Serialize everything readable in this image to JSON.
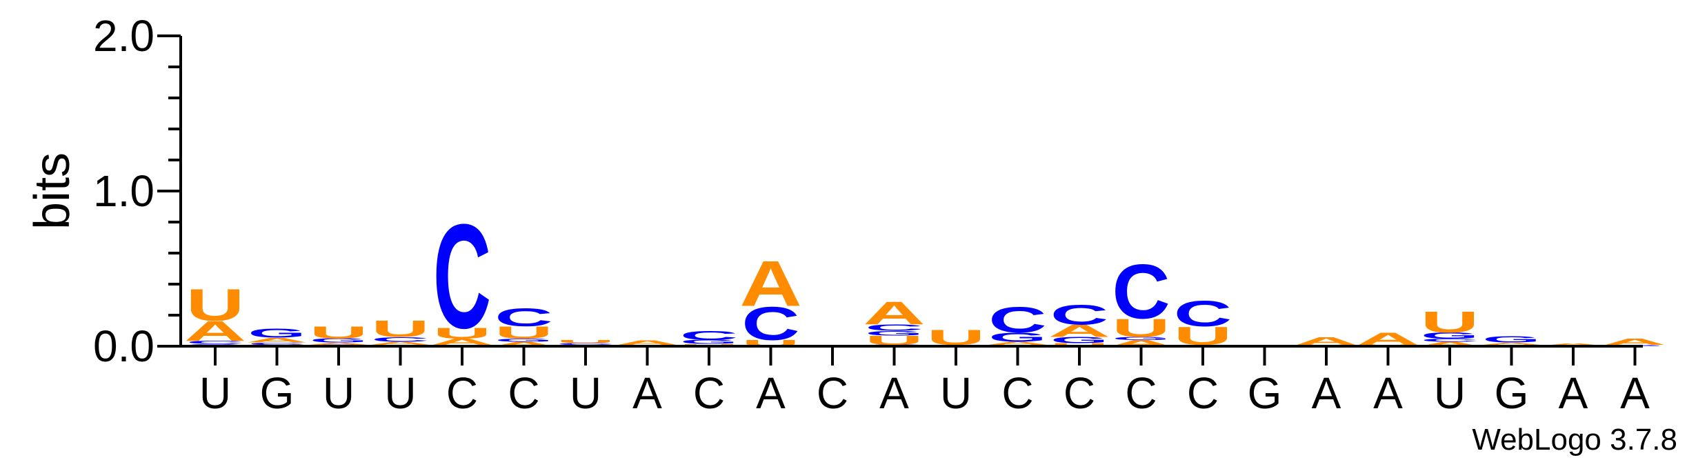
{
  "chart_data": {
    "type": "sequence-logo",
    "ylabel": "bits",
    "ylim": [
      0,
      2.0
    ],
    "yticks": [
      "0.0",
      "1.0",
      "2.0"
    ],
    "credit": "WebLogo 3.7.8",
    "colors": {
      "A": "#ff8c00",
      "U": "#ff8c00",
      "C": "#0000ff",
      "G": "#0000ff"
    },
    "positions": [
      {
        "label": "U",
        "stack": [
          [
            "G",
            0.015
          ],
          [
            "C",
            0.02
          ],
          [
            "A",
            0.13
          ],
          [
            "U",
            0.21
          ]
        ]
      },
      {
        "label": "G",
        "stack": [
          [
            "U",
            0.01
          ],
          [
            "C",
            0.015
          ],
          [
            "A",
            0.03
          ],
          [
            "G",
            0.06
          ]
        ]
      },
      {
        "label": "U",
        "stack": [
          [
            "C",
            0.01
          ],
          [
            "A",
            0.015
          ],
          [
            "G",
            0.025
          ],
          [
            "U",
            0.08
          ]
        ]
      },
      {
        "label": "U",
        "stack": [
          [
            "G",
            0.01
          ],
          [
            "A",
            0.02
          ],
          [
            "C",
            0.03
          ],
          [
            "U",
            0.11
          ]
        ]
      },
      {
        "label": "C",
        "stack": [
          [
            "G",
            0.01
          ],
          [
            "A",
            0.04
          ],
          [
            "U",
            0.07
          ],
          [
            "C",
            0.69
          ]
        ]
      },
      {
        "label": "C",
        "stack": [
          [
            "A",
            0.03
          ],
          [
            "G",
            0.02
          ],
          [
            "U",
            0.08
          ],
          [
            "C",
            0.12
          ]
        ]
      },
      {
        "label": "U",
        "stack": [
          [
            "A",
            0.01
          ],
          [
            "C",
            0.01
          ],
          [
            "U",
            0.02
          ]
        ]
      },
      {
        "label": "A",
        "stack": [
          [
            "U",
            0.01
          ],
          [
            "A",
            0.03
          ]
        ]
      },
      {
        "label": "C",
        "stack": [
          [
            "U",
            0.015
          ],
          [
            "G",
            0.025
          ],
          [
            "C",
            0.06
          ]
        ]
      },
      {
        "label": "A",
        "stack": [
          [
            "U",
            0.04
          ],
          [
            "C",
            0.22
          ],
          [
            "A",
            0.3
          ]
        ]
      },
      {
        "label": "C",
        "stack": []
      },
      {
        "label": "A",
        "stack": [
          [
            "C",
            0.01
          ],
          [
            "U",
            0.06
          ],
          [
            "G",
            0.03
          ],
          [
            "C",
            0.04
          ],
          [
            "A",
            0.15
          ]
        ]
      },
      {
        "label": "U",
        "stack": [
          [
            "A",
            0.01
          ],
          [
            "U",
            0.1
          ]
        ]
      },
      {
        "label": "C",
        "stack": [
          [
            "U",
            0.01
          ],
          [
            "A",
            0.02
          ],
          [
            "G",
            0.06
          ],
          [
            "C",
            0.17
          ]
        ]
      },
      {
        "label": "C",
        "stack": [
          [
            "U",
            0.02
          ],
          [
            "G",
            0.04
          ],
          [
            "A",
            0.08
          ],
          [
            "C",
            0.13
          ]
        ]
      },
      {
        "label": "C",
        "stack": [
          [
            "A",
            0.04
          ],
          [
            "G",
            0.02
          ],
          [
            "U",
            0.12
          ],
          [
            "C",
            0.36
          ]
        ]
      },
      {
        "label": "C",
        "stack": [
          [
            "A",
            0.01
          ],
          [
            "U",
            0.12
          ],
          [
            "C",
            0.17
          ]
        ]
      },
      {
        "label": "G",
        "stack": []
      },
      {
        "label": "A",
        "stack": [
          [
            "U",
            0.01
          ],
          [
            "A",
            0.05
          ]
        ]
      },
      {
        "label": "A",
        "stack": [
          [
            "U",
            0.01
          ],
          [
            "A",
            0.08
          ]
        ]
      },
      {
        "label": "U",
        "stack": [
          [
            "A",
            0.03
          ],
          [
            "C",
            0.02
          ],
          [
            "G",
            0.04
          ],
          [
            "U",
            0.14
          ]
        ]
      },
      {
        "label": "G",
        "stack": [
          [
            "U",
            0.01
          ],
          [
            "A",
            0.015
          ],
          [
            "G",
            0.04
          ]
        ]
      },
      {
        "label": "A",
        "stack": [
          [
            "U",
            0.005
          ],
          [
            "A",
            0.015
          ]
        ]
      },
      {
        "label": "A",
        "stack": [
          [
            "G",
            0.01
          ],
          [
            "A",
            0.04
          ]
        ]
      }
    ]
  }
}
